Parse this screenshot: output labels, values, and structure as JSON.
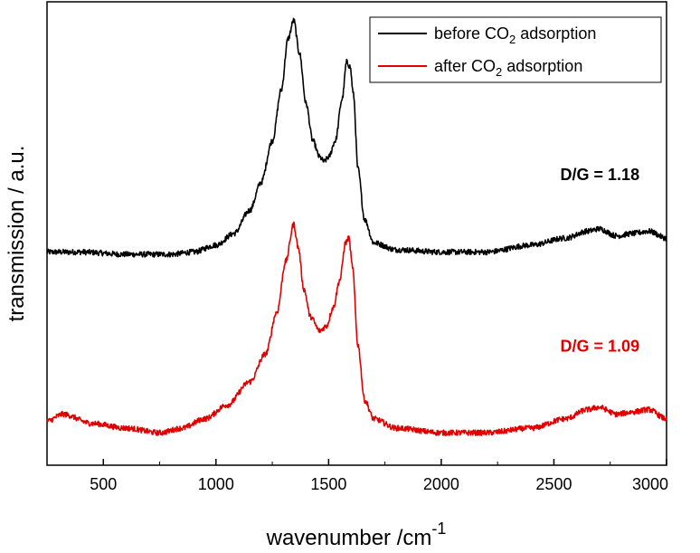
{
  "chart_data": {
    "type": "line",
    "xlabel": "wavenumber /cm",
    "xlabel_superscript": "-1",
    "ylabel": "transmission / a.u.",
    "xlim": [
      250,
      3000
    ],
    "ylim": [
      0,
      1
    ],
    "xticks": [
      500,
      1000,
      1500,
      2000,
      2500,
      3000
    ],
    "xtick_labels": [
      "500",
      "1000",
      "1500",
      "2000",
      "2500",
      "3000"
    ],
    "yticks_shown": false,
    "legend": {
      "placement": "top-right",
      "entries": [
        {
          "series": 0,
          "prefix": "before CO",
          "subscript": "2",
          "suffix": " adsorption"
        },
        {
          "series": 1,
          "prefix": "after CO",
          "subscript": "2",
          "suffix": " adsorption"
        }
      ]
    },
    "series": [
      {
        "name": "before CO2 adsorption",
        "color": "#000000",
        "points": [
          [
            250,
            0.46
          ],
          [
            400,
            0.46
          ],
          [
            600,
            0.455
          ],
          [
            800,
            0.455
          ],
          [
            900,
            0.46
          ],
          [
            1000,
            0.475
          ],
          [
            1080,
            0.5
          ],
          [
            1150,
            0.55
          ],
          [
            1200,
            0.61
          ],
          [
            1250,
            0.7
          ],
          [
            1290,
            0.81
          ],
          [
            1320,
            0.92
          ],
          [
            1345,
            0.96
          ],
          [
            1370,
            0.89
          ],
          [
            1400,
            0.78
          ],
          [
            1430,
            0.7
          ],
          [
            1460,
            0.665
          ],
          [
            1480,
            0.655
          ],
          [
            1500,
            0.665
          ],
          [
            1530,
            0.7
          ],
          [
            1560,
            0.79
          ],
          [
            1580,
            0.87
          ],
          [
            1595,
            0.86
          ],
          [
            1610,
            0.8
          ],
          [
            1630,
            0.64
          ],
          [
            1660,
            0.53
          ],
          [
            1700,
            0.48
          ],
          [
            1800,
            0.465
          ],
          [
            2000,
            0.46
          ],
          [
            2200,
            0.46
          ],
          [
            2400,
            0.475
          ],
          [
            2550,
            0.49
          ],
          [
            2650,
            0.505
          ],
          [
            2700,
            0.51
          ],
          [
            2780,
            0.495
          ],
          [
            2850,
            0.5
          ],
          [
            2920,
            0.505
          ],
          [
            3000,
            0.49
          ]
        ]
      },
      {
        "name": "after CO2 adsorption",
        "color": "#e00000",
        "points": [
          [
            250,
            0.095
          ],
          [
            320,
            0.11
          ],
          [
            450,
            0.09
          ],
          [
            600,
            0.08
          ],
          [
            750,
            0.07
          ],
          [
            850,
            0.08
          ],
          [
            950,
            0.1
          ],
          [
            1050,
            0.13
          ],
          [
            1150,
            0.18
          ],
          [
            1220,
            0.24
          ],
          [
            1270,
            0.33
          ],
          [
            1310,
            0.44
          ],
          [
            1345,
            0.52
          ],
          [
            1365,
            0.47
          ],
          [
            1390,
            0.38
          ],
          [
            1420,
            0.32
          ],
          [
            1460,
            0.29
          ],
          [
            1490,
            0.3
          ],
          [
            1520,
            0.34
          ],
          [
            1550,
            0.4
          ],
          [
            1575,
            0.48
          ],
          [
            1590,
            0.49
          ],
          [
            1605,
            0.43
          ],
          [
            1630,
            0.26
          ],
          [
            1660,
            0.14
          ],
          [
            1700,
            0.1
          ],
          [
            1800,
            0.08
          ],
          [
            2000,
            0.07
          ],
          [
            2200,
            0.07
          ],
          [
            2400,
            0.08
          ],
          [
            2550,
            0.1
          ],
          [
            2650,
            0.12
          ],
          [
            2700,
            0.125
          ],
          [
            2780,
            0.11
          ],
          [
            2850,
            0.115
          ],
          [
            2920,
            0.12
          ],
          [
            3000,
            0.1
          ]
        ]
      }
    ],
    "annotations": [
      {
        "label": "D/G = 1.18",
        "color": "#000000",
        "x": 2880,
        "y": 0.615
      },
      {
        "label": "D/G = 1.09",
        "color": "#e00000",
        "x": 2880,
        "y": 0.245
      }
    ]
  }
}
